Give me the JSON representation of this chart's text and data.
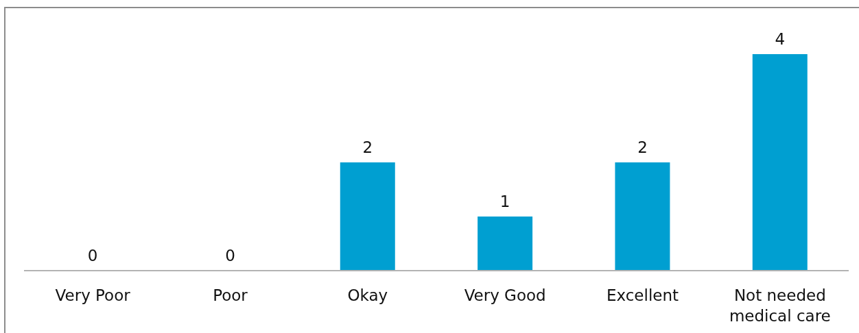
{
  "chart_data": {
    "type": "bar",
    "categories": [
      "Very Poor",
      "Poor",
      "Okay",
      "Very Good",
      "Excellent",
      "Not needed medical care"
    ],
    "values": [
      0,
      0,
      2,
      1,
      2,
      4
    ],
    "color": "#009fd1",
    "data_labels": true
  }
}
